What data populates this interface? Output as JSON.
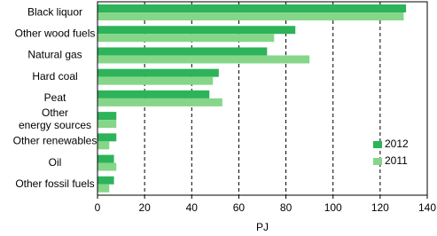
{
  "chart_data": {
    "type": "hbar",
    "categories": [
      "Black liquor",
      "Other wood fuels",
      "Natural gas",
      "Hard coal",
      "Peat",
      "Other\nenergy sources",
      "Other renewables",
      "Oil",
      "Other fossil fuels"
    ],
    "series": [
      {
        "name": "2012",
        "color": "#2db35a",
        "values": [
          131,
          84,
          72,
          51.5,
          47.5,
          8,
          8,
          7,
          7
        ]
      },
      {
        "name": "2011",
        "color": "#86d689",
        "values": [
          130,
          75,
          90,
          49,
          53,
          8,
          5,
          8,
          5
        ]
      }
    ],
    "xlabel": "PJ",
    "xlim": [
      0,
      140
    ],
    "xticks": [
      0,
      20,
      40,
      60,
      80,
      100,
      120,
      140
    ],
    "grid": true,
    "legend": "lower right"
  }
}
